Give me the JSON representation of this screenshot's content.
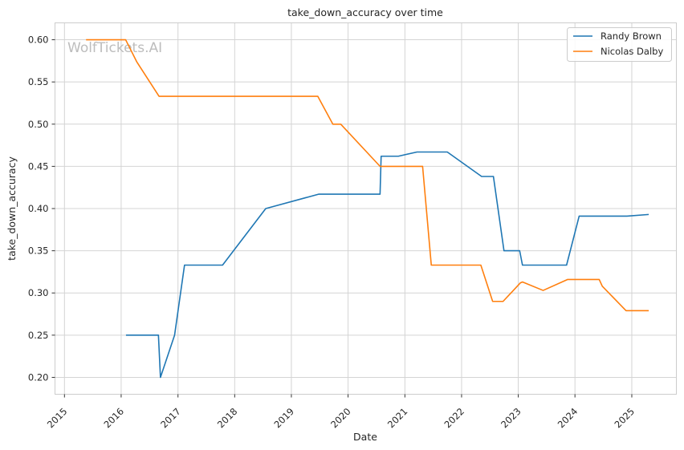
{
  "chart_data": {
    "type": "line",
    "title": "take_down_accuracy over time",
    "xlabel": "Date",
    "ylabel": "take_down_accuracy",
    "xlim": [
      "2014-11-01",
      "2025-10-15"
    ],
    "ylim": [
      0.18,
      0.62
    ],
    "x_ticks": [
      "2015",
      "2016",
      "2017",
      "2018",
      "2019",
      "2020",
      "2021",
      "2022",
      "2023",
      "2024",
      "2025"
    ],
    "y_ticks": [
      "0.20",
      "0.25",
      "0.30",
      "0.35",
      "0.40",
      "0.45",
      "0.50",
      "0.55",
      "0.60"
    ],
    "grid": true,
    "legend_position": "top-right",
    "watermark": "WolfTickets.AI",
    "series": [
      {
        "name": "Randy Brown",
        "color": "#1f77b4",
        "points": [
          [
            "2016-02-01",
            0.25
          ],
          [
            "2016-08-28",
            0.25
          ],
          [
            "2016-09-10",
            0.2
          ],
          [
            "2016-12-10",
            0.25
          ],
          [
            "2017-02-12",
            0.333
          ],
          [
            "2017-10-15",
            0.333
          ],
          [
            "2018-07-20",
            0.4
          ],
          [
            "2019-06-25",
            0.417
          ],
          [
            "2020-07-25",
            0.417
          ],
          [
            "2020-08-01",
            0.462
          ],
          [
            "2020-11-20",
            0.462
          ],
          [
            "2021-03-20",
            0.467
          ],
          [
            "2021-10-01",
            0.467
          ],
          [
            "2022-05-10",
            0.438
          ],
          [
            "2022-07-25",
            0.438
          ],
          [
            "2022-10-01",
            0.35
          ],
          [
            "2023-01-10",
            0.35
          ],
          [
            "2023-01-28",
            0.333
          ],
          [
            "2023-11-08",
            0.333
          ],
          [
            "2024-01-28",
            0.391
          ],
          [
            "2024-12-01",
            0.391
          ],
          [
            "2025-04-20",
            0.393
          ]
        ]
      },
      {
        "name": "Nicolas Dalby",
        "color": "#ff7f0e",
        "points": [
          [
            "2015-05-20",
            0.6
          ],
          [
            "2016-01-30",
            0.6
          ],
          [
            "2016-04-10",
            0.574
          ],
          [
            "2016-09-01",
            0.533
          ],
          [
            "2019-06-20",
            0.533
          ],
          [
            "2019-09-25",
            0.5
          ],
          [
            "2019-11-15",
            0.5
          ],
          [
            "2020-07-25",
            0.45
          ],
          [
            "2021-04-25",
            0.45
          ],
          [
            "2021-06-20",
            0.333
          ],
          [
            "2022-05-05",
            0.333
          ],
          [
            "2022-07-20",
            0.29
          ],
          [
            "2022-09-25",
            0.29
          ],
          [
            "2023-01-15",
            0.312
          ],
          [
            "2023-01-28",
            0.313
          ],
          [
            "2023-06-10",
            0.303
          ],
          [
            "2023-11-15",
            0.316
          ],
          [
            "2024-06-05",
            0.316
          ],
          [
            "2024-06-25",
            0.308
          ],
          [
            "2024-11-25",
            0.279
          ],
          [
            "2025-04-20",
            0.279
          ]
        ]
      }
    ]
  }
}
